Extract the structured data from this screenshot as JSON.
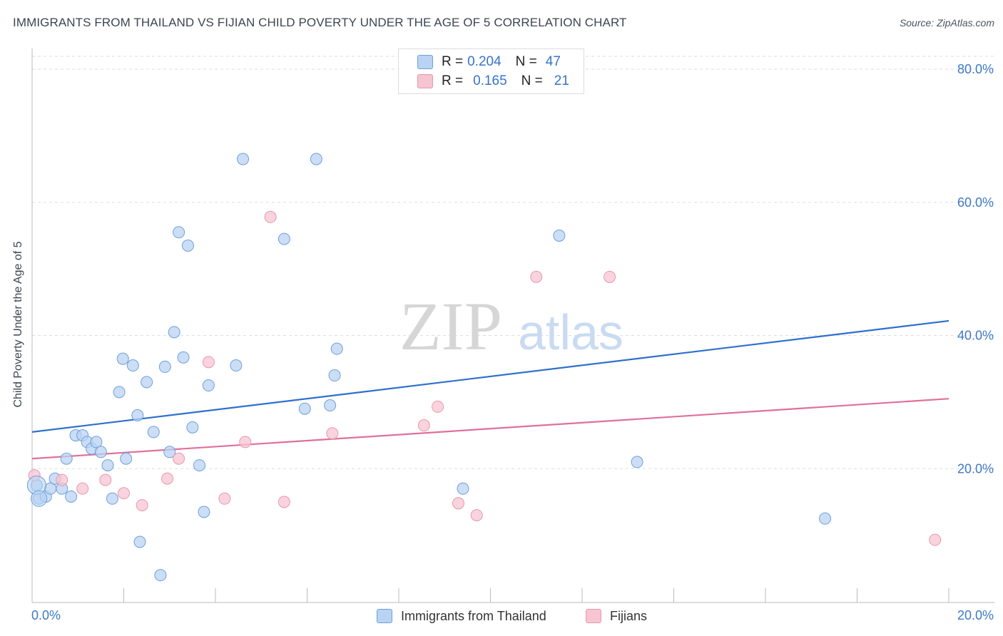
{
  "title": "IMMIGRANTS FROM THAILAND VS FIJIAN CHILD POVERTY UNDER THE AGE OF 5 CORRELATION CHART",
  "source": "Source: ZipAtlas.com",
  "watermark": {
    "zip": "ZIP",
    "atlas": "atlas"
  },
  "legend": {
    "rows": [
      {
        "r_label": "R =",
        "r_value": "0.204",
        "n_label": "N =",
        "n_value": "47"
      },
      {
        "r_label": "R =",
        "r_value": "0.165",
        "n_label": "N =",
        "n_value": "21"
      }
    ]
  },
  "bottom_legend": {
    "series_1": "Immigrants from Thailand",
    "series_2": "Fijians"
  },
  "colors": {
    "blue_fill": "#b9d3f3",
    "blue_stroke": "#6d9fdc",
    "blue_line": "#2f6fce",
    "pink_fill": "#f7c4d2",
    "pink_stroke": "#e898b0",
    "pink_line": "#e0709a",
    "axis_text": "#3d78c8"
  },
  "chart_data": {
    "type": "scatter",
    "title": "IMMIGRANTS FROM THAILAND VS FIJIAN CHILD POVERTY UNDER THE AGE OF 5 CORRELATION CHART",
    "xlabel": "",
    "ylabel": "Child Poverty Under the Age of 5",
    "xlim": [
      0,
      20
    ],
    "ylim": [
      0,
      80
    ],
    "x_tick_labels": [
      "0.0%",
      "20.0%"
    ],
    "x_tick_values": [
      0,
      20
    ],
    "y_tick_labels": [
      "20.0%",
      "40.0%",
      "60.0%",
      "80.0%"
    ],
    "y_tick_values": [
      20,
      40,
      60,
      80
    ],
    "grid": true,
    "legend_position": "top-center",
    "series": [
      {
        "name": "Immigrants from Thailand",
        "color": "#b9d3f3",
        "points": [
          [
            0.1,
            17.5
          ],
          [
            0.15,
            15.5
          ],
          [
            0.3,
            15.8
          ],
          [
            0.4,
            17.0
          ],
          [
            0.5,
            18.5
          ],
          [
            0.65,
            17.0
          ],
          [
            0.85,
            15.8
          ],
          [
            0.75,
            21.5
          ],
          [
            0.95,
            25.0
          ],
          [
            1.1,
            25.0
          ],
          [
            1.2,
            24.0
          ],
          [
            1.3,
            23.0
          ],
          [
            1.4,
            24.0
          ],
          [
            1.5,
            22.5
          ],
          [
            1.65,
            20.5
          ],
          [
            1.75,
            15.5
          ],
          [
            1.9,
            31.5
          ],
          [
            1.98,
            36.5
          ],
          [
            2.05,
            21.5
          ],
          [
            2.2,
            35.5
          ],
          [
            2.3,
            28.0
          ],
          [
            2.35,
            9.0
          ],
          [
            2.5,
            33.0
          ],
          [
            2.65,
            25.5
          ],
          [
            2.8,
            4.0
          ],
          [
            2.9,
            35.3
          ],
          [
            3.0,
            22.5
          ],
          [
            3.1,
            40.5
          ],
          [
            3.2,
            55.5
          ],
          [
            3.3,
            36.7
          ],
          [
            3.4,
            53.5
          ],
          [
            3.5,
            26.2
          ],
          [
            3.65,
            20.5
          ],
          [
            3.75,
            13.5
          ],
          [
            3.85,
            32.5
          ],
          [
            4.45,
            35.5
          ],
          [
            4.6,
            66.5
          ],
          [
            5.5,
            54.5
          ],
          [
            5.95,
            29.0
          ],
          [
            6.2,
            66.5
          ],
          [
            6.5,
            29.5
          ],
          [
            6.6,
            34.0
          ],
          [
            6.65,
            38.0
          ],
          [
            9.4,
            17.0
          ],
          [
            11.5,
            55.0
          ],
          [
            13.2,
            21.0
          ],
          [
            17.3,
            12.5
          ]
        ],
        "trend": {
          "x": [
            0,
            20
          ],
          "y": [
            25.5,
            42.2
          ]
        }
      },
      {
        "name": "Fijians",
        "color": "#f7c4d2",
        "points": [
          [
            0.05,
            19.0
          ],
          [
            0.65,
            18.3
          ],
          [
            1.1,
            17.0
          ],
          [
            1.6,
            18.3
          ],
          [
            2.0,
            16.3
          ],
          [
            2.4,
            14.5
          ],
          [
            2.95,
            18.5
          ],
          [
            3.2,
            21.5
          ],
          [
            3.85,
            36.0
          ],
          [
            4.2,
            15.5
          ],
          [
            4.65,
            24.0
          ],
          [
            5.2,
            57.8
          ],
          [
            5.5,
            15.0
          ],
          [
            6.55,
            25.3
          ],
          [
            8.55,
            26.5
          ],
          [
            8.85,
            29.3
          ],
          [
            9.3,
            14.8
          ],
          [
            9.7,
            13.0
          ],
          [
            11.0,
            48.8
          ],
          [
            12.6,
            48.8
          ],
          [
            19.7,
            9.3
          ]
        ],
        "trend": {
          "x": [
            0,
            20
          ],
          "y": [
            21.5,
            30.5
          ]
        }
      }
    ]
  }
}
